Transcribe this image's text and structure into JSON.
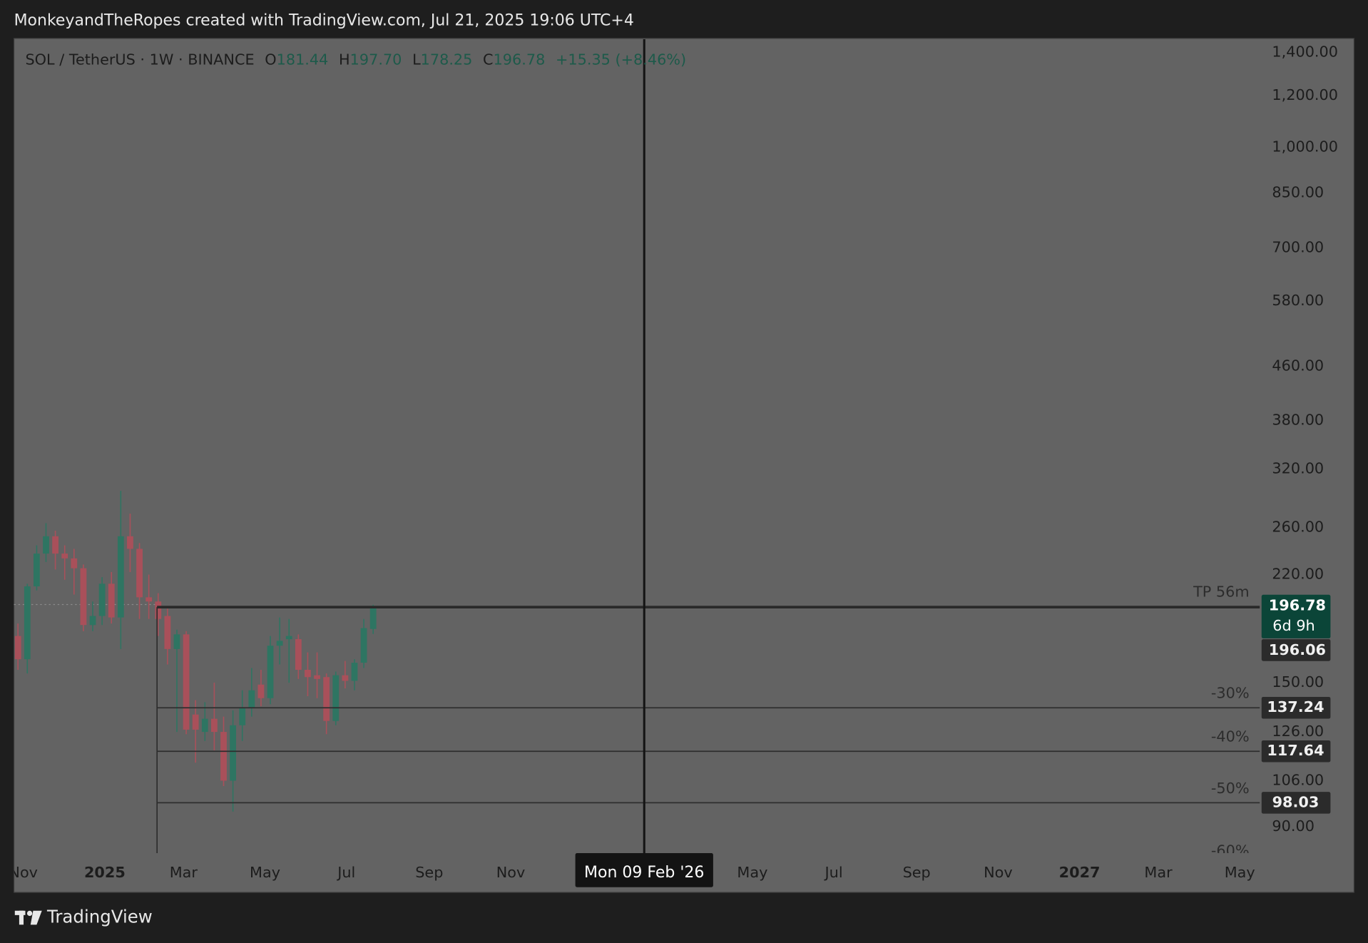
{
  "header": "MonkeyandTheRopes created with TradingView.com, Jul 21, 2025 19:06 UTC+4",
  "footer": {
    "brand": "TradingView"
  },
  "chart_data": {
    "type": "candlestick",
    "symbol": "SOL / TetherUS · 1W · BINANCE",
    "ohlc_names": [
      "O",
      "H",
      "L",
      "C"
    ],
    "ohlc_value_labels": [
      "181.44",
      "197.70",
      "178.25",
      "196.78"
    ],
    "change_text": "+15.35 (+8.46%)",
    "x": [
      "2024-10-28",
      "2024-11-04",
      "2024-11-11",
      "2024-11-18",
      "2024-11-25",
      "2024-12-02",
      "2024-12-09",
      "2024-12-16",
      "2024-12-23",
      "2024-12-30",
      "2025-01-06",
      "2025-01-13",
      "2025-01-20",
      "2025-01-27",
      "2025-02-03",
      "2025-02-10",
      "2025-02-17",
      "2025-02-24",
      "2025-03-03",
      "2025-03-10",
      "2025-03-17",
      "2025-03-24",
      "2025-03-31",
      "2025-04-07",
      "2025-04-14",
      "2025-04-21",
      "2025-04-28",
      "2025-05-05",
      "2025-05-12",
      "2025-05-19",
      "2025-05-26",
      "2025-06-02",
      "2025-06-09",
      "2025-06-16",
      "2025-06-23",
      "2025-06-30",
      "2025-07-07",
      "2025-07-14",
      "2025-07-21"
    ],
    "open": [
      177,
      163,
      211,
      237,
      252,
      237,
      233,
      225,
      184,
      190,
      213,
      189,
      252,
      241,
      203,
      200,
      190,
      169,
      178,
      134,
      126,
      132,
      126,
      106,
      129,
      137,
      149,
      142,
      171,
      175,
      175,
      157,
      154,
      153,
      131,
      154,
      151,
      161,
      181.44
    ],
    "high": [
      185,
      213,
      244,
      264,
      257,
      244,
      241,
      228,
      200,
      218,
      222,
      296,
      273,
      246,
      220,
      206,
      195,
      181,
      180,
      141,
      140,
      150,
      133,
      136,
      146,
      158,
      157,
      177,
      189,
      188,
      178,
      167,
      167,
      155,
      156,
      162,
      163,
      188,
      197.7
    ],
    "low": [
      157,
      155,
      208,
      230,
      224,
      216,
      205,
      180,
      180,
      184,
      185,
      169,
      222,
      188,
      188,
      177,
      160,
      126,
      125,
      113,
      122,
      118,
      104,
      95,
      122,
      133,
      138,
      139,
      160,
      150,
      152,
      143,
      142,
      125,
      129,
      147,
      146,
      158,
      178.25
    ],
    "close": [
      163,
      211,
      237,
      252,
      237,
      233,
      225,
      184,
      190,
      213,
      189,
      252,
      241,
      203,
      200,
      188,
      169,
      178,
      127,
      127,
      132,
      126,
      106,
      129,
      137,
      146,
      142,
      171,
      174,
      177,
      157,
      153,
      152,
      131,
      154,
      151,
      161,
      182,
      196.78
    ],
    "up_color": "#2e7562",
    "down_color": "#a9505a",
    "log_scale": true,
    "xlim": [
      "2024-10-25",
      "2027-05-16"
    ],
    "xticks": [
      {
        "value": "2024-11-01",
        "label": "Nov"
      },
      {
        "value": "2025-01-01",
        "label": "2025"
      },
      {
        "value": "2025-03-01",
        "label": "Mar"
      },
      {
        "value": "2025-05-01",
        "label": "May"
      },
      {
        "value": "2025-07-01",
        "label": "Jul"
      },
      {
        "value": "2025-09-01",
        "label": "Sep"
      },
      {
        "value": "2025-11-01",
        "label": "Nov"
      },
      {
        "value": "2026-05-01",
        "label": "May"
      },
      {
        "value": "2026-07-01",
        "label": "Jul"
      },
      {
        "value": "2026-09-01",
        "label": "Sep"
      },
      {
        "value": "2026-11-01",
        "label": "Nov"
      },
      {
        "value": "2027-01-01",
        "label": "2027"
      },
      {
        "value": "2027-03-01",
        "label": "Mar"
      },
      {
        "value": "2027-05-01",
        "label": "May"
      }
    ],
    "ylim": [
      82,
      1466
    ],
    "yticks": [
      {
        "value": 1400,
        "label": "1,400.00"
      },
      {
        "value": 1200,
        "label": "1,200.00"
      },
      {
        "value": 1000,
        "label": "1,000.00"
      },
      {
        "value": 850,
        "label": "850.00"
      },
      {
        "value": 700,
        "label": "700.00"
      },
      {
        "value": 580,
        "label": "580.00"
      },
      {
        "value": 460,
        "label": "460.00"
      },
      {
        "value": 380,
        "label": "380.00"
      },
      {
        "value": 320,
        "label": "320.00"
      },
      {
        "value": 260,
        "label": "260.00"
      },
      {
        "value": 220,
        "label": "220.00"
      },
      {
        "value": 150,
        "label": "150.00"
      },
      {
        "value": 126,
        "label": "126.00"
      },
      {
        "value": 106,
        "label": "106.00"
      },
      {
        "value": 90,
        "label": "90.00"
      }
    ],
    "countdown": "6d 9h",
    "base_level": {
      "value": 196.06,
      "label": "TP 56m"
    },
    "levels": [
      {
        "label": "-30%",
        "value": 137.24
      },
      {
        "label": "-40%",
        "value": 117.64
      },
      {
        "label": "-50%",
        "value": 98.03
      }
    ],
    "cut_level_label": "-60%",
    "crosshair": {
      "x": "2026-02-09",
      "label": "Mon 09 Feb '26"
    }
  }
}
